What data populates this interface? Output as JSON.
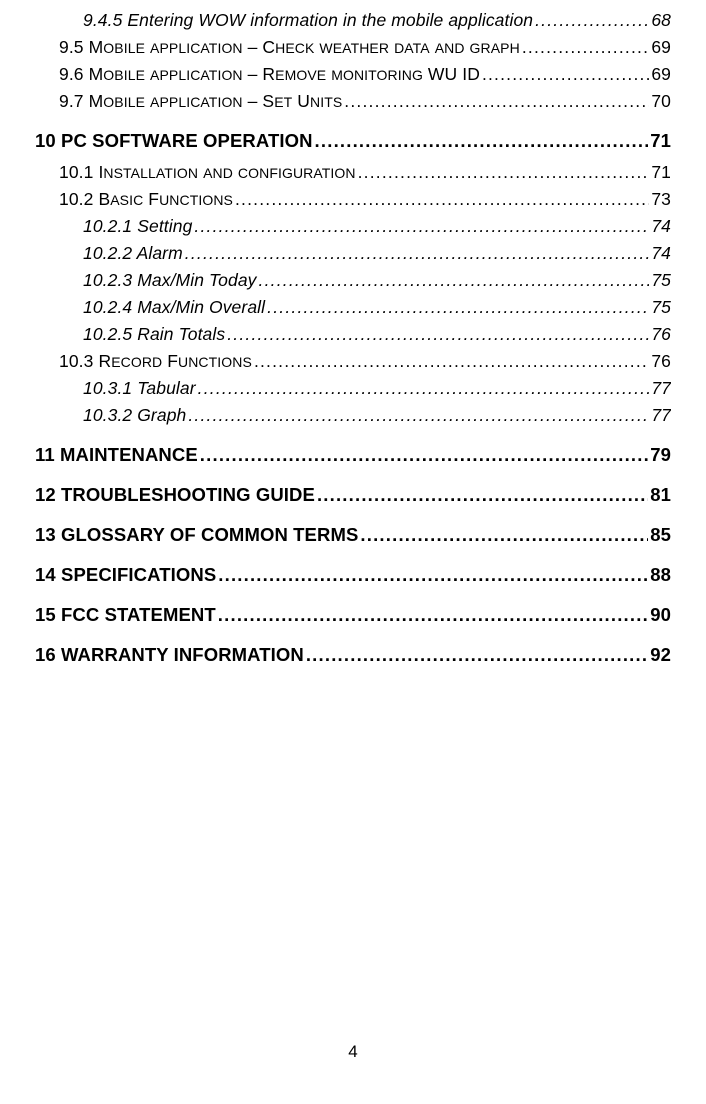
{
  "entries": [
    {
      "level": "h3",
      "text": "9.4.5 Entering WOW information in the mobile application",
      "page": "68"
    },
    {
      "level": "h2",
      "num": "9.5 ",
      "words": [
        [
          "M",
          "obile"
        ],
        [
          " ",
          "application"
        ],
        [
          " – ",
          ""
        ],
        [
          "C",
          "heck"
        ],
        [
          " ",
          "weather"
        ],
        [
          " ",
          "data"
        ],
        [
          " ",
          "and"
        ],
        [
          " ",
          "graph"
        ]
      ],
      "page": "69"
    },
    {
      "level": "h2",
      "num": "9.6 ",
      "words": [
        [
          "M",
          "obile"
        ],
        [
          " ",
          "application"
        ],
        [
          " – ",
          ""
        ],
        [
          "R",
          "emove"
        ],
        [
          " ",
          "monitoring"
        ],
        [
          " WU ID",
          ""
        ]
      ],
      "page": "69"
    },
    {
      "level": "h2",
      "num": "9.7 ",
      "words": [
        [
          "M",
          "obile"
        ],
        [
          " ",
          "application"
        ],
        [
          " – ",
          ""
        ],
        [
          "S",
          "et"
        ],
        [
          " ",
          ""
        ],
        [
          "U",
          "nits"
        ]
      ],
      "page": "70"
    },
    {
      "level": "h1",
      "text": "10 PC SOFTWARE OPERATION",
      "page": "71"
    },
    {
      "level": "h2",
      "num": "10.1 ",
      "words": [
        [
          "I",
          "nstallation"
        ],
        [
          " ",
          "and"
        ],
        [
          " ",
          "configuration"
        ]
      ],
      "page": "71"
    },
    {
      "level": "h2",
      "num": "10.2 ",
      "words": [
        [
          "B",
          "asic"
        ],
        [
          " ",
          ""
        ],
        [
          "F",
          "unctions"
        ]
      ],
      "page": "73"
    },
    {
      "level": "h3",
      "text": "10.2.1 Setting",
      "page": "74"
    },
    {
      "level": "h3",
      "text": "10.2.2 Alarm",
      "page": "74"
    },
    {
      "level": "h3",
      "text": "10.2.3 Max/Min Today",
      "page": "75"
    },
    {
      "level": "h3",
      "text": "10.2.4 Max/Min Overall",
      "page": "75"
    },
    {
      "level": "h3",
      "text": "10.2.5 Rain Totals",
      "page": "76"
    },
    {
      "level": "h2",
      "num": "10.3 ",
      "words": [
        [
          "R",
          "ecord"
        ],
        [
          " ",
          ""
        ],
        [
          "F",
          "unctions"
        ]
      ],
      "page": "76"
    },
    {
      "level": "h3",
      "text": "10.3.1 Tabular",
      "page": "77"
    },
    {
      "level": "h3",
      "text": "10.3.2 Graph",
      "page": "77"
    },
    {
      "level": "h1",
      "text": "11 MAINTENANCE",
      "page": "79"
    },
    {
      "level": "h1",
      "text": "12 TROUBLESHOOTING GUIDE",
      "page": "81"
    },
    {
      "level": "h1",
      "text": "13 GLOSSARY OF COMMON TERMS",
      "page": "85"
    },
    {
      "level": "h1",
      "text": "14 SPECIFICATIONS",
      "page": "88"
    },
    {
      "level": "h1",
      "text": "15 FCC STATEMENT",
      "page": "90"
    },
    {
      "level": "h1",
      "text": "16 WARRANTY INFORMATION",
      "page": "92"
    }
  ],
  "page_number": "4",
  "colors": {
    "text": "#000000",
    "bg": "#ffffff"
  }
}
